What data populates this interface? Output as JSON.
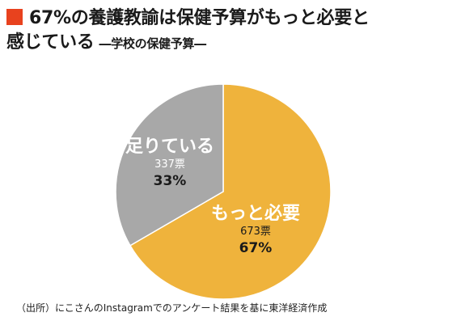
{
  "header": {
    "title_line1": "67%の養護教諭は保健予算がもっと必要と",
    "title_line2": "感じている",
    "subtitle": "―学校の保健予算―",
    "marker_color": "#e8421e"
  },
  "chart_data": {
    "type": "pie",
    "slices": [
      {
        "label": "もっと必要",
        "votes_text": "673票",
        "percent_text": "67%",
        "value": 673,
        "color": "#efb33c"
      },
      {
        "label": "足りている",
        "votes_text": "337票",
        "percent_text": "33%",
        "value": 337,
        "color": "#a8a8a8"
      }
    ]
  },
  "source": "（出所）にこさんのInstagramでのアンケート結果を基に東洋経済作成"
}
